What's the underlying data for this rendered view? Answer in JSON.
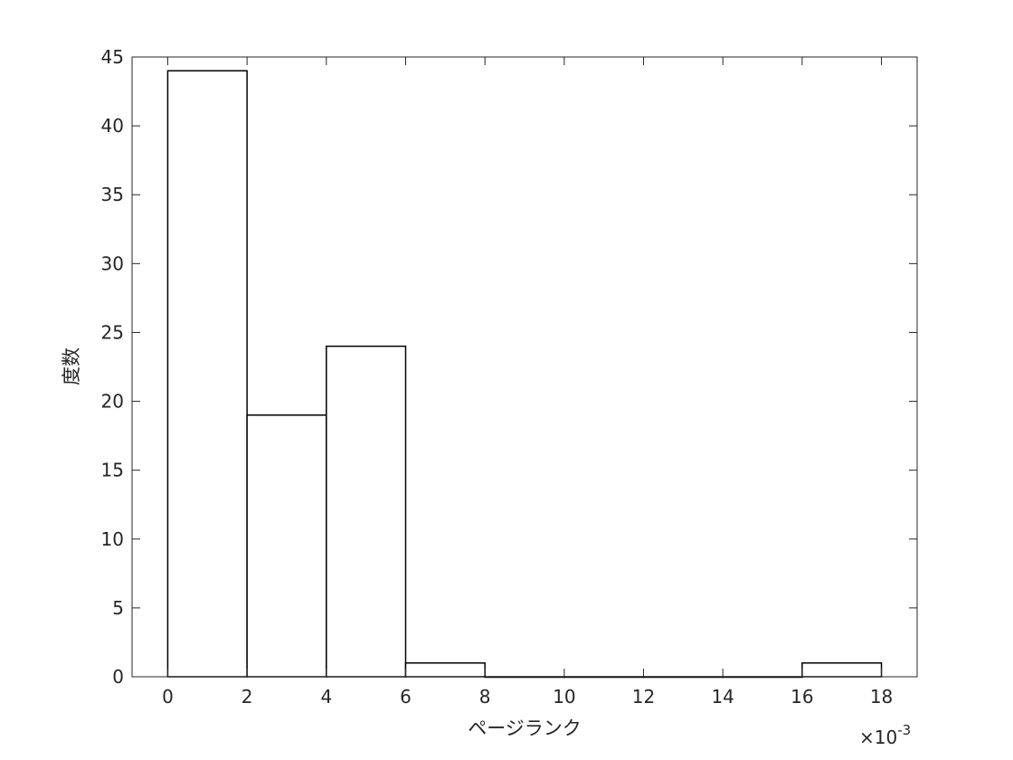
{
  "chart_data": {
    "type": "bar",
    "subtype": "histogram",
    "xlabel": "ページランク",
    "ylabel": "度数",
    "x_exponent_label": "×10",
    "x_exponent_power": "-3",
    "bin_edges": [
      0,
      2,
      4,
      6,
      8,
      10,
      12,
      14,
      16,
      18
    ],
    "values": [
      44,
      19,
      24,
      1,
      0,
      0,
      0,
      0,
      1
    ],
    "xlim": [
      -0.9,
      18.9
    ],
    "ylim": [
      0,
      45
    ],
    "xticks": [
      0,
      2,
      4,
      6,
      8,
      10,
      12,
      14,
      16,
      18
    ],
    "yticks": [
      0,
      5,
      10,
      15,
      20,
      25,
      30,
      35,
      40,
      45
    ],
    "xtick_labels": [
      "0",
      "2",
      "4",
      "6",
      "8",
      "10",
      "12",
      "14",
      "16",
      "18"
    ],
    "ytick_labels": [
      "0",
      "5",
      "10",
      "15",
      "20",
      "25",
      "30",
      "35",
      "40",
      "45"
    ],
    "bar_fill": "#ffffff",
    "bar_stroke": "#000000",
    "grid": false
  }
}
